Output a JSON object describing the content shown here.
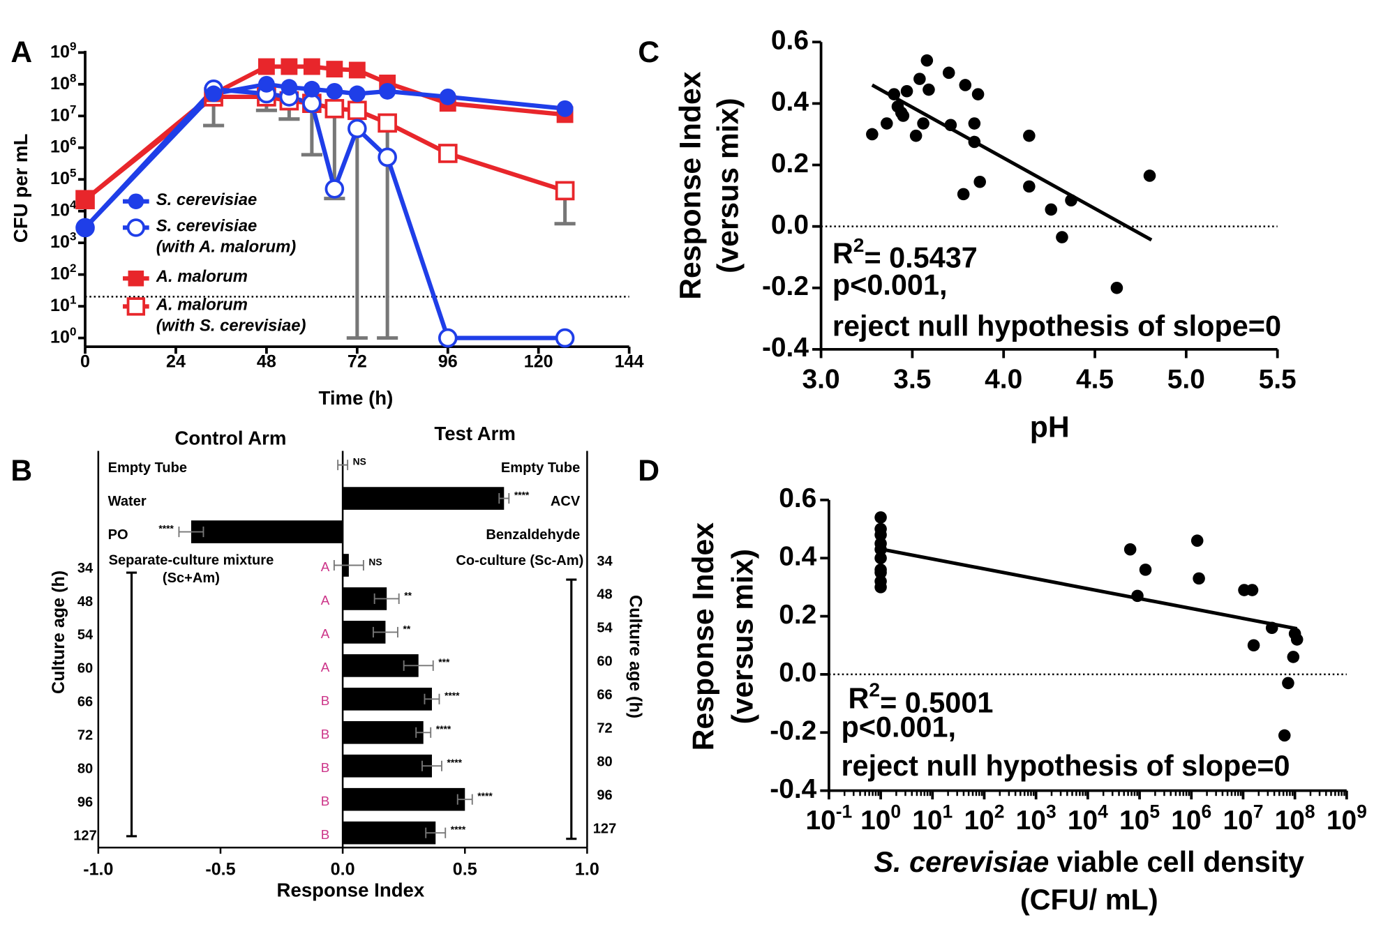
{
  "chart_data": [
    {
      "panel": "A",
      "type": "line",
      "xlabel": "Time (h)",
      "ylabel": "CFU per mL",
      "log_y": true,
      "x": [
        0,
        34,
        48,
        54,
        60,
        66,
        72,
        80,
        96,
        127
      ],
      "xlim": [
        0,
        144
      ],
      "xticks": [
        0,
        24,
        48,
        72,
        96,
        120,
        144
      ],
      "ylim": [
        1,
        1000000000
      ],
      "yticks": [
        {
          "value": 1,
          "label": "10",
          "sup": "0"
        },
        {
          "value": 10,
          "label": "10",
          "sup": "1"
        },
        {
          "value": 100,
          "label": "10",
          "sup": "2"
        },
        {
          "value": 1000,
          "label": "10",
          "sup": "3"
        },
        {
          "value": 10000,
          "label": "10",
          "sup": "4"
        },
        {
          "value": 100000,
          "label": "10",
          "sup": "5"
        },
        {
          "value": 1000000,
          "label": "10",
          "sup": "6"
        },
        {
          "value": 10000000,
          "label": "10",
          "sup": "7"
        },
        {
          "value": 100000000,
          "label": "10",
          "sup": "8"
        },
        {
          "value": 1000000000,
          "label": "10",
          "sup": "9"
        }
      ],
      "detection_limit": 20,
      "error_color": "#777777",
      "series": [
        {
          "name": "S. cerevisiae",
          "color": "#1f3ee8",
          "marker": "circle",
          "open": false,
          "values": [
            3000,
            50000000,
            100000000,
            80000000,
            70000000,
            60000000,
            50000000,
            60000000,
            40000000,
            17000000
          ]
        },
        {
          "name": "S. cerevisiae\n(with A. malorum)",
          "color": "#1f3ee8",
          "marker": "circle",
          "open": true,
          "values": [
            3000,
            70000000,
            50000000,
            40000000,
            25000000,
            50000,
            4000000,
            500000,
            1,
            1
          ],
          "err_low": [
            null,
            5000000,
            15000000,
            8000000,
            600000,
            null,
            1,
            null,
            null,
            null
          ]
        },
        {
          "name": "A. malorum",
          "color": "#e8262b",
          "marker": "square",
          "open": false,
          "values": [
            23000,
            50000000,
            360000000,
            360000000,
            360000000,
            300000000,
            280000000,
            110000000,
            25000000,
            11000000
          ]
        },
        {
          "name": "A. malorum\n(with S. cerevisiae)",
          "color": "#e8262b",
          "marker": "square",
          "open": true,
          "values": [
            23000,
            40000000,
            40000000,
            30000000,
            25000000,
            17000000,
            15000000,
            6000000,
            660000,
            44000
          ],
          "err_low": [
            null,
            null,
            null,
            null,
            null,
            25000,
            null,
            1,
            null,
            4000
          ]
        }
      ]
    },
    {
      "panel": "B",
      "type": "hbar",
      "titles": [
        "Control Arm",
        "Test Arm"
      ],
      "labels_left": [
        "Empty Tube",
        "Water",
        "PO",
        "34",
        "48",
        "54",
        "60",
        "66",
        "72",
        "80",
        "96",
        "127"
      ],
      "labels_right": [
        "Empty Tube",
        "ACV",
        "Benzaldehyde",
        "34",
        "48",
        "54",
        "60",
        "66",
        "72",
        "80",
        "96",
        "127"
      ],
      "values": [
        0,
        0.66,
        -0.62,
        0.025,
        0.18,
        0.175,
        0.31,
        0.365,
        0.33,
        0.365,
        0.5,
        0.38
      ],
      "errors": [
        0.02,
        0.02,
        0.05,
        0.06,
        0.05,
        0.05,
        0.06,
        0.03,
        0.03,
        0.04,
        0.03,
        0.04
      ],
      "significance": [
        "NS",
        "****",
        "****",
        "NS",
        "**",
        "**",
        "***",
        "****",
        "****",
        "****",
        "****",
        "****"
      ],
      "groups": [
        null,
        null,
        null,
        "A",
        "A",
        "A",
        "A",
        "B",
        "B",
        "B",
        "B",
        "B"
      ],
      "group_color": "#cc3388",
      "group_label_left": "Separate-culture mixture\n(Sc+Am)",
      "group_label_right": "Co-culture (Sc-Am)",
      "color": "#000000",
      "error_color": "#777777",
      "xlim": [
        -1,
        1
      ],
      "xticks": [
        {
          "value": -1,
          "label": "-1.0"
        },
        -0.5,
        {
          "value": 0,
          "label": "0.0"
        },
        0.5,
        {
          "value": 1,
          "label": "1.0"
        }
      ],
      "xlabel": "Response Index",
      "ylabel": "Culture age (h)"
    },
    {
      "panel": "C",
      "type": "scatter",
      "color": "#000000",
      "x": [
        3.28,
        3.36,
        3.4,
        3.42,
        3.45,
        3.47,
        3.44,
        3.54,
        3.58,
        3.52,
        3.56,
        3.59,
        3.7,
        3.71,
        3.79,
        3.86,
        3.84,
        3.84,
        3.87,
        3.78,
        4.14,
        4.14,
        4.26,
        4.37,
        4.32,
        4.62,
        4.8
      ],
      "values": [
        0.3,
        0.335,
        0.43,
        0.39,
        0.36,
        0.44,
        0.37,
        0.48,
        0.54,
        0.295,
        0.335,
        0.445,
        0.5,
        0.33,
        0.46,
        0.43,
        0.335,
        0.275,
        0.145,
        0.105,
        0.295,
        0.13,
        0.055,
        0.085,
        -0.035,
        -0.2,
        0.165
      ],
      "fit": {
        "x": [
          3.28,
          4.81
        ],
        "y": [
          0.46,
          -0.044
        ]
      },
      "xlim": [
        3,
        5.5
      ],
      "xticks": [
        {
          "value": 3,
          "label": "3.0"
        },
        3.5,
        {
          "value": 4,
          "label": "4.0"
        },
        4.5,
        {
          "value": 5,
          "label": "5.0"
        },
        5.5
      ],
      "ylim": [
        -0.4,
        0.6
      ],
      "yticks": [
        -0.4,
        -0.2,
        {
          "value": 0,
          "label": "0.0"
        },
        0.2,
        0.4,
        0.6
      ],
      "reference_line": 0,
      "xlabel": [
        "pH"
      ],
      "ylabel": [
        "Response Index",
        "(versus mix)"
      ],
      "r2": [
        "R",
        "2",
        "= 0.5437"
      ],
      "annotations": [
        "p<0.001,",
        "reject null hypothesis of slope=0"
      ]
    },
    {
      "panel": "D",
      "type": "scatter",
      "log_x": true,
      "color": "#000000",
      "x": [
        1,
        1,
        1,
        1,
        1,
        1,
        1,
        1,
        1,
        1,
        66000,
        91000,
        130000,
        1300000,
        1400000,
        10500000,
        15000000,
        16000000,
        36000000,
        63000000,
        74000000,
        93000000,
        100000000,
        110000000
      ],
      "values": [
        0.54,
        0.5,
        0.48,
        0.45,
        0.43,
        0.4,
        0.36,
        0.35,
        0.32,
        0.3,
        0.43,
        0.27,
        0.36,
        0.46,
        0.33,
        0.29,
        0.29,
        0.1,
        0.16,
        -0.21,
        -0.03,
        0.06,
        0.14,
        0.12
      ],
      "fit": {
        "x": [
          1,
          110000000
        ],
        "y": [
          0.431,
          0.157
        ]
      },
      "xlim": [
        0.1,
        1000000000
      ],
      "xticks": [
        {
          "value": 0.1,
          "label": "10",
          "sup": "-1"
        },
        {
          "value": 1,
          "label": "10",
          "sup": "0"
        },
        {
          "value": 10,
          "label": "10",
          "sup": "1"
        },
        {
          "value": 100,
          "label": "10",
          "sup": "2"
        },
        {
          "value": 1000,
          "label": "10",
          "sup": "3"
        },
        {
          "value": 10000,
          "label": "10",
          "sup": "4"
        },
        {
          "value": 100000,
          "label": "10",
          "sup": "5"
        },
        {
          "value": 1000000,
          "label": "10",
          "sup": "6"
        },
        {
          "value": 10000000,
          "label": "10",
          "sup": "7"
        },
        {
          "value": 100000000,
          "label": "10",
          "sup": "8"
        },
        {
          "value": 1000000000,
          "label": "10",
          "sup": "9"
        }
      ],
      "ylim": [
        -0.4,
        0.6
      ],
      "yticks": [
        -0.4,
        -0.2,
        {
          "value": 0,
          "label": "0.0"
        },
        0.2,
        0.4,
        0.6
      ],
      "reference_line": 0,
      "xlabel": [
        "S. cerevisiae",
        "viable cell density",
        "(CFU/ mL)"
      ],
      "ylabel": [
        "Response Index",
        "(versus mix)"
      ],
      "r2": [
        "R",
        "2",
        "= 0.5001"
      ],
      "annotations": [
        "p<0.001,",
        "reject null hypothesis of slope=0"
      ]
    }
  ]
}
